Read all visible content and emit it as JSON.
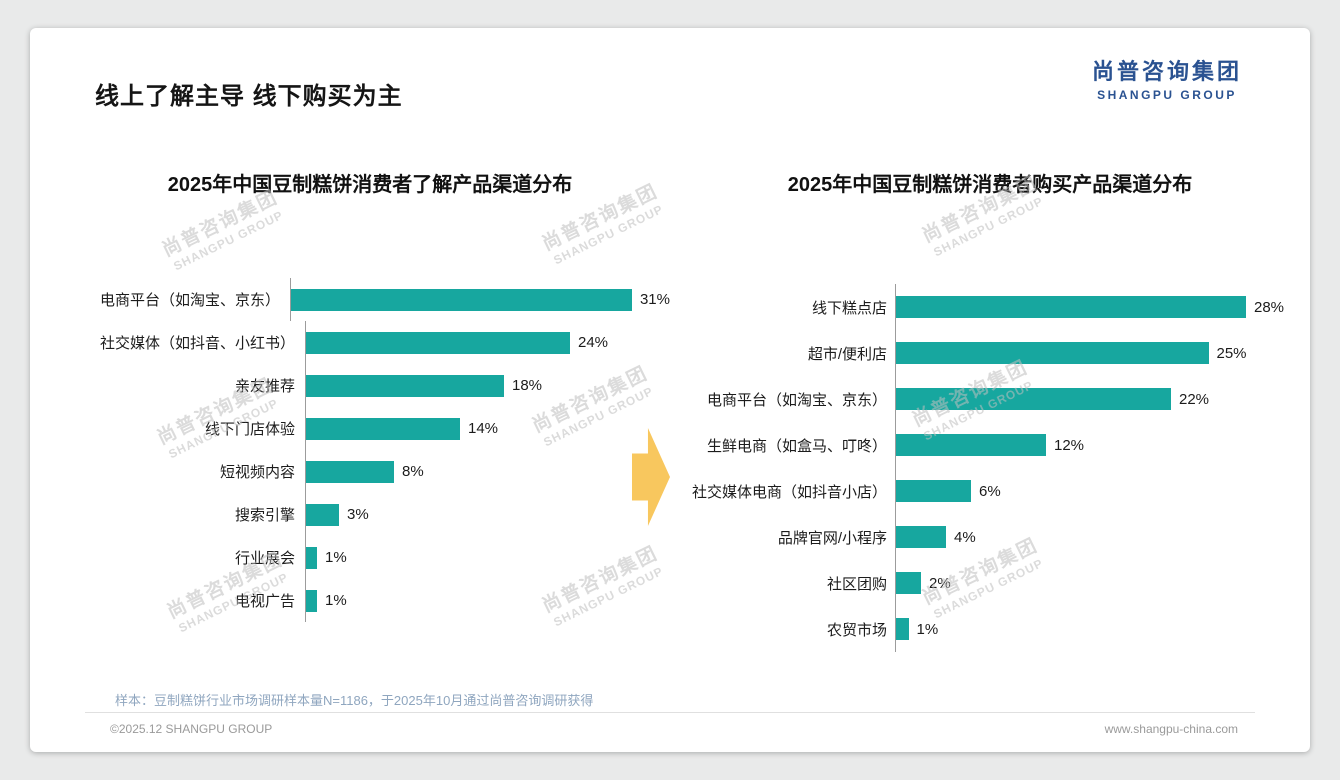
{
  "page": {
    "title": "线上了解主导 线下购买为主",
    "logo": {
      "cn": "尚普咨询集团",
      "en": "SHANGPU GROUP"
    },
    "watermark": {
      "cn": "尚普咨询集团",
      "en": "SHANGPU GROUP"
    },
    "footer": {
      "sample_note": "样本：豆制糕饼行业市场调研样本量N=1186，于2025年10月通过尚普咨询调研获得",
      "copyright": "©2025.12 SHANGPU GROUP",
      "website": "www.shangpu-china.com"
    }
  },
  "colors": {
    "bar": "#17A79F",
    "arrow": "#F8C75E",
    "logo_blue": "#2A5291"
  },
  "chart_data": [
    {
      "type": "bar",
      "orientation": "horizontal",
      "title": "2025年中国豆制糕饼消费者了解产品渠道分布",
      "categories": [
        "电商平台（如淘宝、京东）",
        "社交媒体（如抖音、小红书）",
        "亲友推荐",
        "线下门店体验",
        "短视频内容",
        "搜索引擎",
        "行业展会",
        "电视广告"
      ],
      "values": [
        31,
        24,
        18,
        14,
        8,
        3,
        1,
        1
      ],
      "unit": "%",
      "xlim": [
        0,
        35
      ],
      "grid": false,
      "value_labels": true
    },
    {
      "type": "bar",
      "orientation": "horizontal",
      "title": "2025年中国豆制糕饼消费者购买产品渠道分布",
      "categories": [
        "线下糕点店",
        "超市/便利店",
        "电商平台（如淘宝、京东）",
        "生鲜电商（如盒马、叮咚）",
        "社交媒体电商（如抖音小店）",
        "品牌官网/小程序",
        "社区团购",
        "农贸市场"
      ],
      "values": [
        28,
        25,
        22,
        12,
        6,
        4,
        2,
        1
      ],
      "unit": "%",
      "xlim": [
        0,
        32
      ],
      "grid": false,
      "value_labels": true
    }
  ]
}
